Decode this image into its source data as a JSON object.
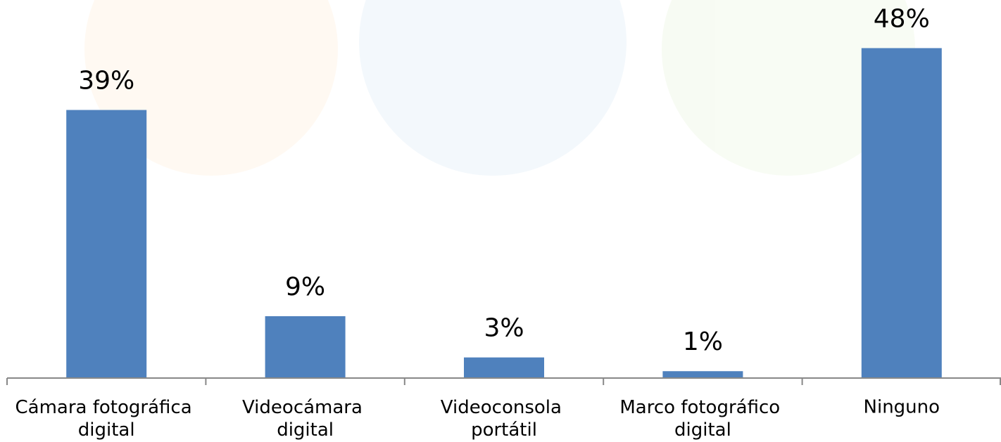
{
  "chart_data": {
    "type": "bar",
    "categories": [
      "Cámara fotográfica digital",
      "Videocámara digital",
      "Videoconsola portátil",
      "Marco fotográfico digital",
      "Ninguno"
    ],
    "values": [
      39,
      9,
      3,
      1,
      48
    ],
    "value_labels": [
      "39%",
      "9%",
      "3%",
      "1%",
      "48%"
    ],
    "color": "#4f81bd",
    "ylim": [
      0,
      55
    ]
  }
}
